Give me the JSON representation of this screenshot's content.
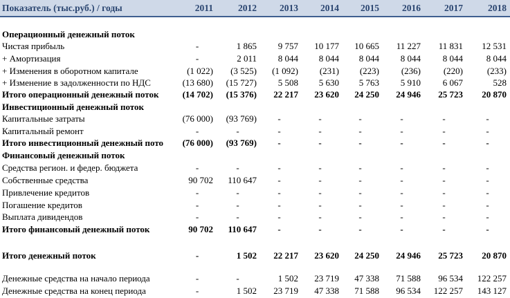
{
  "table": {
    "header": {
      "label": "Показатель (тыс.руб.) / годы",
      "years": [
        "2011",
        "2012",
        "2013",
        "2014",
        "2015",
        "2016",
        "2017",
        "2018"
      ]
    },
    "rows": [
      {
        "label": "Операционный денежный поток",
        "bold": true,
        "values": []
      },
      {
        "label": "Чистая прибыль",
        "bold": false,
        "values": [
          "-",
          "1 865",
          "9 757",
          "10 177",
          "10 665",
          "11 227",
          "11 831",
          "12 531"
        ]
      },
      {
        "label": " + Амортизация",
        "bold": false,
        "values": [
          "-",
          "2 011",
          "8 044",
          "8 044",
          "8 044",
          "8 044",
          "8 044",
          "8 044"
        ]
      },
      {
        "label": " + Изменения в оборотном капитале",
        "bold": false,
        "values": [
          "(1 022)",
          "(3 525)",
          "(1 092)",
          "(231)",
          "(223)",
          "(236)",
          "(220)",
          "(233)"
        ]
      },
      {
        "label": " + Изменение в задолженности по НДС",
        "bold": false,
        "values": [
          "(13 680)",
          "(15 727)",
          "5 508",
          "5 630",
          "5 763",
          "5 910",
          "6 067",
          "528"
        ]
      },
      {
        "label": "Итого операционный денежный поток",
        "bold": true,
        "values": [
          "(14 702)",
          "(15 376)",
          "22 217",
          "23 620",
          "24 250",
          "24 946",
          "25 723",
          "20 870"
        ]
      },
      {
        "label": "Инвестиционный денежный поток",
        "bold": true,
        "values": []
      },
      {
        "label": "Капитальные затраты",
        "bold": false,
        "values": [
          "(76 000)",
          "(93 769)",
          "-",
          "-",
          "-",
          "-",
          "-",
          "-"
        ]
      },
      {
        "label": "Капитальный ремонт",
        "bold": false,
        "values": [
          "-",
          "-",
          "-",
          "-",
          "-",
          "-",
          "-",
          "-"
        ]
      },
      {
        "label": "Итого инвестиционный денежный пото",
        "bold": true,
        "values": [
          "(76 000)",
          "(93 769)",
          "-",
          "-",
          "-",
          "-",
          "-",
          "-"
        ]
      },
      {
        "label": "Финансовый денежный поток",
        "bold": true,
        "values": []
      },
      {
        "label": "Средства регион. и федер. бюджета",
        "bold": false,
        "values": [
          "-",
          "-",
          "-",
          "-",
          "-",
          "-",
          "-",
          "-"
        ]
      },
      {
        "label": "Собственные средства",
        "bold": false,
        "values": [
          "90 702",
          "110 647",
          "-",
          "-",
          "-",
          "-",
          "-",
          "-"
        ]
      },
      {
        "label": "Привлечение кредитов",
        "bold": false,
        "values": [
          "-",
          "-",
          "-",
          "-",
          "-",
          "-",
          "-",
          "-"
        ]
      },
      {
        "label": "Погашение кредитов",
        "bold": false,
        "values": [
          "-",
          "-",
          "-",
          "-",
          "-",
          "-",
          "-",
          "-"
        ]
      },
      {
        "label": "Выплата дивидендов",
        "bold": false,
        "values": [
          "-",
          "-",
          "-",
          "-",
          "-",
          "-",
          "-",
          "-"
        ]
      },
      {
        "label": "Итого финансовый денежный поток",
        "bold": true,
        "values": [
          "90 702",
          "110 647",
          "-",
          "-",
          "-",
          "-",
          "-",
          "-"
        ]
      },
      {
        "label": "Итого денежный поток",
        "bold": true,
        "values": [
          "-",
          "1 502",
          "22 217",
          "23 620",
          "24 250",
          "24 946",
          "25 723",
          "20 870"
        ]
      },
      {
        "label": "Денежные средства на начало периода",
        "bold": false,
        "values": [
          "-",
          "-",
          "1 502",
          "23 719",
          "47 338",
          "71 588",
          "96 534",
          "122 257"
        ]
      },
      {
        "label": "Денежные средства на конец периода",
        "bold": false,
        "values": [
          "-",
          "1 502",
          "23 719",
          "47 338",
          "71 588",
          "96 534",
          "122 257",
          "143 127"
        ]
      }
    ]
  }
}
